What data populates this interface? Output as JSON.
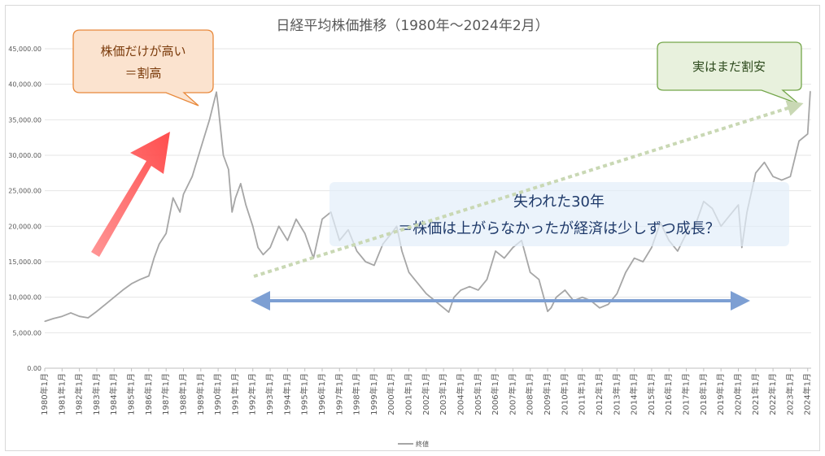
{
  "chart_data": {
    "type": "line",
    "title": "日経平均株価推移（1980年〜2024年2月）",
    "xlabel": "",
    "ylabel": "",
    "ylim": [
      0,
      45000
    ],
    "xlim": [
      1980,
      2024.2
    ],
    "yticks": [
      "0.00",
      "5,000.00",
      "10,000.00",
      "15,000.00",
      "20,000.00",
      "25,000.00",
      "30,000.00",
      "35,000.00",
      "40,000.00",
      "45,000.00"
    ],
    "xticks": [
      "1980年1月",
      "1981年1月",
      "1982年1月",
      "1983年1月",
      "1984年1月",
      "1985年1月",
      "1986年1月",
      "1987年1月",
      "1988年1月",
      "1989年1月",
      "1990年1月",
      "1991年1月",
      "1992年1月",
      "1993年1月",
      "1994年1月",
      "1995年1月",
      "1996年1月",
      "1997年1月",
      "1998年1月",
      "1999年1月",
      "2000年1月",
      "2001年1月",
      "2002年1月",
      "2003年1月",
      "2004年1月",
      "2005年1月",
      "2006年1月",
      "2007年1月",
      "2008年1月",
      "2009年1月",
      "2010年1月",
      "2011年1月",
      "2012年1月",
      "2013年1月",
      "2014年1月",
      "2015年1月",
      "2016年1月",
      "2017年1月",
      "2018年1月",
      "2019年1月",
      "2020年1月",
      "2021年1月",
      "2022年1月",
      "2023年1月",
      "2024年1月"
    ],
    "grid": true,
    "legend_position": "bottom",
    "series": [
      {
        "name": "終値",
        "color": "#a6a6a6",
        "x": [
          1980.0,
          1980.5,
          1981.0,
          1981.5,
          1982.0,
          1982.5,
          1983.0,
          1983.5,
          1984.0,
          1984.5,
          1985.0,
          1985.5,
          1986.0,
          1986.3,
          1986.6,
          1987.0,
          1987.4,
          1987.8,
          1988.0,
          1988.5,
          1989.0,
          1989.5,
          1989.9,
          1990.0,
          1990.3,
          1990.6,
          1990.8,
          1991.0,
          1991.3,
          1991.6,
          1992.0,
          1992.3,
          1992.6,
          1993.0,
          1993.5,
          1994.0,
          1994.5,
          1995.0,
          1995.5,
          1996.0,
          1996.5,
          1997.0,
          1997.5,
          1998.0,
          1998.5,
          1999.0,
          1999.5,
          2000.0,
          2000.3,
          2000.6,
          2001.0,
          2001.5,
          2002.0,
          2002.5,
          2003.0,
          2003.3,
          2003.6,
          2004.0,
          2004.5,
          2005.0,
          2005.5,
          2006.0,
          2006.5,
          2007.0,
          2007.5,
          2008.0,
          2008.5,
          2009.0,
          2009.2,
          2009.5,
          2010.0,
          2010.5,
          2011.0,
          2011.5,
          2012.0,
          2012.5,
          2013.0,
          2013.5,
          2014.0,
          2014.5,
          2015.0,
          2015.5,
          2016.0,
          2016.5,
          2017.0,
          2017.5,
          2018.0,
          2018.5,
          2019.0,
          2019.5,
          2020.0,
          2020.2,
          2020.5,
          2021.0,
          2021.5,
          2022.0,
          2022.5,
          2023.0,
          2023.5,
          2024.0,
          2024.15
        ],
        "values": [
          6600,
          7000,
          7300,
          7800,
          7300,
          7100,
          8000,
          9000,
          10000,
          11000,
          11900,
          12500,
          13000,
          15500,
          17500,
          19000,
          24000,
          22000,
          24500,
          27000,
          31000,
          35000,
          38900,
          37000,
          30000,
          28000,
          22000,
          24000,
          26000,
          23000,
          20000,
          17000,
          16000,
          17000,
          20000,
          18000,
          21000,
          19000,
          15500,
          21000,
          22000,
          18000,
          19500,
          16500,
          15000,
          14500,
          17500,
          19000,
          20000,
          16500,
          13500,
          12000,
          10500,
          9500,
          8500,
          7900,
          10000,
          11000,
          11500,
          11000,
          12500,
          16500,
          15500,
          17000,
          18000,
          13500,
          12500,
          8000,
          8500,
          10000,
          11000,
          9500,
          10000,
          9500,
          8500,
          9000,
          10500,
          13500,
          15500,
          15000,
          17000,
          20500,
          18000,
          16500,
          19000,
          20000,
          23500,
          22500,
          20000,
          21500,
          23000,
          17000,
          22000,
          27500,
          29000,
          27000,
          26500,
          27000,
          32000,
          33000,
          39000
        ]
      }
    ],
    "annotations": {
      "overvalued": "株価だけが高い\n＝割高",
      "undervalued": "実はまだ割安",
      "lost_decades_line1": "失われた30年",
      "lost_decades_line2": "＝株価は上がらなかったが経済は少しずつ成長？"
    }
  }
}
